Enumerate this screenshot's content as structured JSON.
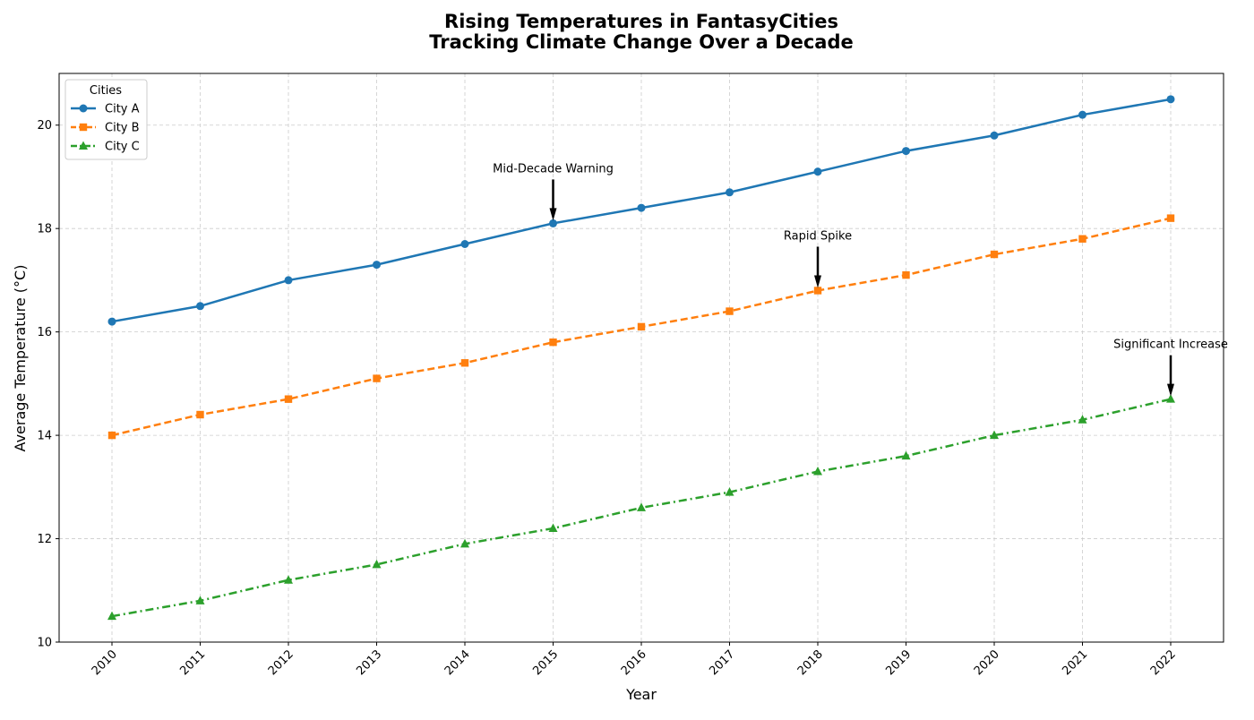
{
  "chart_data": {
    "type": "line",
    "title": "Rising Temperatures in FantasyCities",
    "subtitle": "Tracking Climate Change Over a Decade",
    "xlabel": "Year",
    "ylabel": "Average Temperature (°C)",
    "x": [
      "2010",
      "2011",
      "2012",
      "2013",
      "2014",
      "2015",
      "2016",
      "2017",
      "2018",
      "2019",
      "2020",
      "2021",
      "2022"
    ],
    "ylim": [
      10,
      21
    ],
    "yticks": [
      "10",
      "12",
      "14",
      "16",
      "18",
      "20"
    ],
    "grid": true,
    "legend": {
      "title": "Cities",
      "placement": "top-left"
    },
    "series": [
      {
        "name": "City A",
        "color": "#1f77b4",
        "marker": "circle",
        "line_style": "solid",
        "values": [
          16.2,
          16.5,
          17.0,
          17.3,
          17.7,
          18.1,
          18.4,
          18.7,
          19.1,
          19.5,
          19.8,
          20.2,
          20.5
        ]
      },
      {
        "name": "City B",
        "color": "#ff7f0e",
        "marker": "square",
        "line_style": "dashed",
        "values": [
          14.0,
          14.4,
          14.7,
          15.1,
          15.4,
          15.8,
          16.1,
          16.4,
          16.8,
          17.1,
          17.5,
          17.8,
          18.2
        ]
      },
      {
        "name": "City C",
        "color": "#2ca02c",
        "marker": "triangle",
        "line_style": "dashdot",
        "values": [
          10.5,
          10.8,
          11.2,
          11.5,
          11.9,
          12.2,
          12.6,
          12.9,
          13.3,
          13.6,
          14.0,
          14.3,
          14.7
        ]
      }
    ],
    "annotations": [
      {
        "text": "Mid-Decade Warning",
        "x": "2015",
        "y": 18.1
      },
      {
        "text": "Rapid Spike",
        "x": "2018",
        "y": 16.8
      },
      {
        "text": "Significant Increase",
        "x": "2022",
        "y": 14.7
      }
    ]
  }
}
